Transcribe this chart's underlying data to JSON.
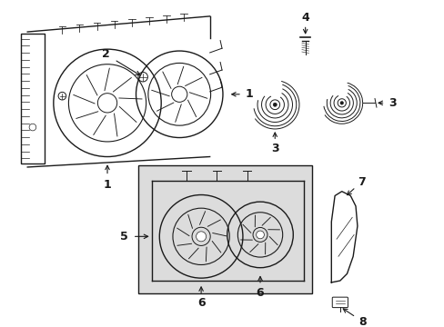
{
  "background_color": "#ffffff",
  "line_color": "#1a1a1a",
  "label_color": "#1a1a1a",
  "figure_width": 4.89,
  "figure_height": 3.6,
  "dpi": 100,
  "inset_fill": "#e0e0e0",
  "shroud_fill": "#ffffff"
}
